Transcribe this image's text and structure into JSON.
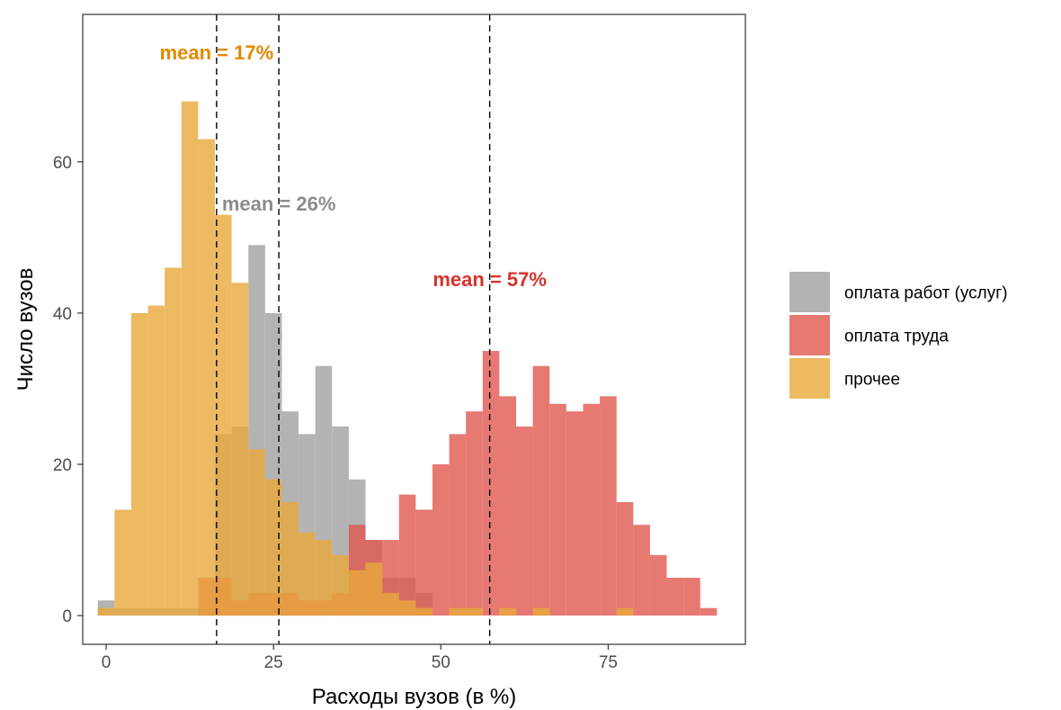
{
  "chart_data": {
    "type": "histogram",
    "xlabel": "Расходы вузов (в %)",
    "ylabel": "Число вузов",
    "xlim": [
      -3.5,
      95.5
    ],
    "ylim": [
      -3.8,
      79.5
    ],
    "x_ticks": [
      0,
      25,
      50,
      75
    ],
    "y_ticks": [
      0,
      20,
      40,
      60
    ],
    "grid": false,
    "bin_width": 2.5,
    "legend_position": "right",
    "series": [
      {
        "name": "оплата работ (услуг)",
        "color": "#B3B3B3",
        "opacity": 1,
        "bin_starts": [
          -1.25,
          1.25,
          3.75,
          6.25,
          8.75,
          11.25,
          13.75,
          16.25,
          18.75,
          21.25,
          23.75,
          26.25,
          28.75,
          31.25,
          33.75,
          36.25,
          38.75,
          41.25,
          43.75,
          46.25
        ],
        "values": [
          2,
          1,
          1,
          1,
          1,
          1,
          1,
          24,
          25,
          49,
          40,
          27,
          24,
          33,
          25,
          18,
          10,
          5,
          5,
          3
        ]
      },
      {
        "name": "оплата труда",
        "color": "#E0574E",
        "opacity": 0.8,
        "bin_starts": [
          13.75,
          16.25,
          18.75,
          21.25,
          23.75,
          26.25,
          28.75,
          31.25,
          33.75,
          36.25,
          38.75,
          41.25,
          43.75,
          46.25,
          48.75,
          51.25,
          53.75,
          56.25,
          58.75,
          61.25,
          63.75,
          66.25,
          68.75,
          71.25,
          73.75,
          76.25,
          78.75,
          81.25,
          83.75,
          86.25,
          88.75
        ],
        "values": [
          5,
          5,
          2,
          3,
          3,
          3,
          2,
          2,
          3,
          12,
          10,
          10,
          16,
          14,
          20,
          24,
          27,
          35,
          29,
          25,
          33,
          28,
          27,
          28,
          29,
          15,
          12,
          8,
          5,
          5,
          1
        ]
      },
      {
        "name": "прочее",
        "color": "#E9A93B",
        "opacity": 0.8,
        "bin_starts": [
          -1.25,
          1.25,
          3.75,
          6.25,
          8.75,
          11.25,
          13.75,
          16.25,
          18.75,
          21.25,
          23.75,
          26.25,
          28.75,
          31.25,
          33.75,
          36.25,
          38.75,
          41.25,
          43.75,
          46.25,
          51.25,
          53.75,
          58.75,
          63.75,
          76.25
        ],
        "values": [
          1,
          14,
          40,
          41,
          46,
          68,
          63,
          53,
          44,
          22,
          18,
          15,
          11,
          10,
          8,
          6,
          7,
          3,
          2,
          1,
          1,
          1,
          1,
          1,
          1
        ]
      }
    ],
    "mean_lines": [
      {
        "x": 16.5,
        "label": "mean = 17%",
        "color": "#E08A00",
        "label_y": 74.5
      },
      {
        "x": 25.8,
        "label": "mean = 26%",
        "color": "#8C8C8C",
        "label_y": 54.5
      },
      {
        "x": 57.3,
        "label": "mean = 57%",
        "color": "#D6332B",
        "label_y": 44.5
      }
    ]
  }
}
